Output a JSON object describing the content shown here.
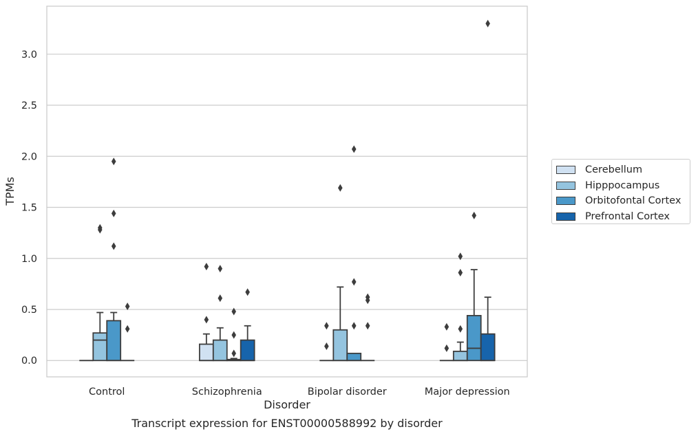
{
  "caption": "Transcript expression for ENST00000588992 by disorder",
  "chart_data": {
    "type": "boxplot",
    "xlabel": "Disorder",
    "ylabel": "TPMs",
    "categories": [
      "Control",
      "Schizophrenia",
      "Bipolar disorder",
      "Major depression"
    ],
    "ylim": [
      -0.16,
      3.47
    ],
    "yticks": [
      "0.0",
      "0.5",
      "1.0",
      "1.5",
      "2.0",
      "2.5",
      "3.0"
    ],
    "grid": "horizontal",
    "legend_position": "right",
    "series": [
      {
        "name": "Cerebellum",
        "color": "#d0e1f2",
        "boxes": [
          {
            "whislo": 0,
            "q1": 0,
            "med": 0,
            "q3": 0,
            "whishi": 0,
            "fliers": []
          },
          {
            "whislo": 0,
            "q1": 0,
            "med": 0,
            "q3": 0.16,
            "whishi": 0.26,
            "fliers": [
              0.92,
              0.4
            ]
          },
          {
            "whislo": 0,
            "q1": 0,
            "med": 0,
            "q3": 0,
            "whishi": 0,
            "fliers": [
              0.34,
              0.14
            ]
          },
          {
            "whislo": 0,
            "q1": 0,
            "med": 0,
            "q3": 0,
            "whishi": 0,
            "fliers": [
              0.33,
              0.12
            ]
          }
        ]
      },
      {
        "name": "Hipppocampus",
        "color": "#94c4df",
        "boxes": [
          {
            "whislo": 0,
            "q1": 0,
            "med": 0.2,
            "q3": 0.27,
            "whishi": 0.47,
            "fliers": [
              1.3,
              1.28
            ]
          },
          {
            "whislo": 0,
            "q1": 0,
            "med": 0,
            "q3": 0.2,
            "whishi": 0.32,
            "fliers": [
              0.9,
              0.61
            ]
          },
          {
            "whislo": 0,
            "q1": 0,
            "med": 0,
            "q3": 0.3,
            "whishi": 0.72,
            "fliers": [
              1.69
            ]
          },
          {
            "whislo": 0,
            "q1": 0,
            "med": 0,
            "q3": 0.09,
            "whishi": 0.18,
            "fliers": [
              1.02,
              0.86,
              0.31
            ]
          }
        ]
      },
      {
        "name": "Orbitofontal Cortex",
        "color": "#4a98c9",
        "boxes": [
          {
            "whislo": 0,
            "q1": 0,
            "med": 0,
            "q3": 0.39,
            "whishi": 0.47,
            "fliers": [
              1.95,
              1.44,
              1.12
            ]
          },
          {
            "whislo": 0,
            "q1": 0,
            "med": 0,
            "q3": 0.01,
            "whishi": 0.02,
            "fliers": [
              0.48,
              0.25,
              0.07
            ]
          },
          {
            "whislo": 0,
            "q1": 0,
            "med": 0,
            "q3": 0.07,
            "whishi": 0.07,
            "fliers": [
              2.07,
              0.77,
              0.34
            ]
          },
          {
            "whislo": 0,
            "q1": 0,
            "med": 0.12,
            "q3": 0.44,
            "whishi": 0.89,
            "fliers": [
              1.42
            ]
          }
        ]
      },
      {
        "name": "Prefrontal Cortex",
        "color": "#1764ab",
        "boxes": [
          {
            "whislo": 0,
            "q1": 0,
            "med": 0,
            "q3": 0,
            "whishi": 0,
            "fliers": [
              0.53,
              0.31
            ]
          },
          {
            "whislo": 0,
            "q1": 0,
            "med": 0,
            "q3": 0.2,
            "whishi": 0.34,
            "fliers": [
              0.67
            ]
          },
          {
            "whislo": 0,
            "q1": 0,
            "med": 0,
            "q3": 0,
            "whishi": 0,
            "fliers": [
              0.62,
              0.59,
              0.34
            ]
          },
          {
            "whislo": 0,
            "q1": 0,
            "med": 0,
            "q3": 0.26,
            "whishi": 0.62,
            "fliers": [
              3.3
            ]
          }
        ]
      }
    ]
  }
}
